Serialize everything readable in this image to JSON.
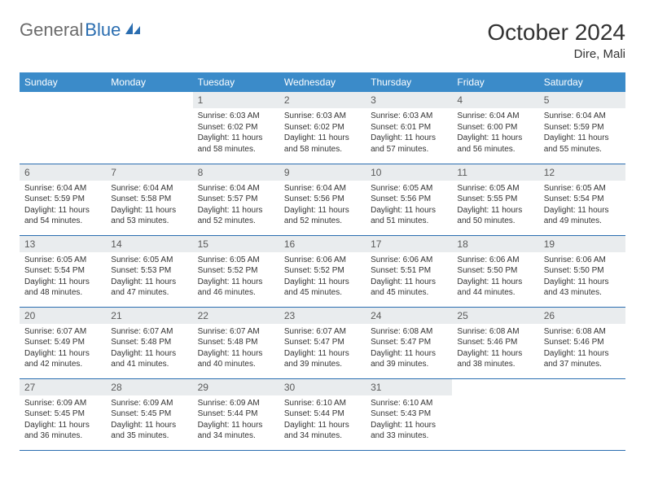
{
  "logo": {
    "part1": "General",
    "part2": "Blue"
  },
  "title": "October 2024",
  "location": "Dire, Mali",
  "colors": {
    "header_bg": "#3b8bc9",
    "header_text": "#ffffff",
    "daynum_bg": "#e9ecee",
    "border": "#2a6db0",
    "logo_gray": "#6b6b6b",
    "logo_blue": "#2a6db0"
  },
  "weekdays": [
    "Sunday",
    "Monday",
    "Tuesday",
    "Wednesday",
    "Thursday",
    "Friday",
    "Saturday"
  ],
  "weeks": [
    [
      null,
      null,
      {
        "n": "1",
        "sr": "Sunrise: 6:03 AM",
        "ss": "Sunset: 6:02 PM",
        "dl": "Daylight: 11 hours and 58 minutes."
      },
      {
        "n": "2",
        "sr": "Sunrise: 6:03 AM",
        "ss": "Sunset: 6:02 PM",
        "dl": "Daylight: 11 hours and 58 minutes."
      },
      {
        "n": "3",
        "sr": "Sunrise: 6:03 AM",
        "ss": "Sunset: 6:01 PM",
        "dl": "Daylight: 11 hours and 57 minutes."
      },
      {
        "n": "4",
        "sr": "Sunrise: 6:04 AM",
        "ss": "Sunset: 6:00 PM",
        "dl": "Daylight: 11 hours and 56 minutes."
      },
      {
        "n": "5",
        "sr": "Sunrise: 6:04 AM",
        "ss": "Sunset: 5:59 PM",
        "dl": "Daylight: 11 hours and 55 minutes."
      }
    ],
    [
      {
        "n": "6",
        "sr": "Sunrise: 6:04 AM",
        "ss": "Sunset: 5:59 PM",
        "dl": "Daylight: 11 hours and 54 minutes."
      },
      {
        "n": "7",
        "sr": "Sunrise: 6:04 AM",
        "ss": "Sunset: 5:58 PM",
        "dl": "Daylight: 11 hours and 53 minutes."
      },
      {
        "n": "8",
        "sr": "Sunrise: 6:04 AM",
        "ss": "Sunset: 5:57 PM",
        "dl": "Daylight: 11 hours and 52 minutes."
      },
      {
        "n": "9",
        "sr": "Sunrise: 6:04 AM",
        "ss": "Sunset: 5:56 PM",
        "dl": "Daylight: 11 hours and 52 minutes."
      },
      {
        "n": "10",
        "sr": "Sunrise: 6:05 AM",
        "ss": "Sunset: 5:56 PM",
        "dl": "Daylight: 11 hours and 51 minutes."
      },
      {
        "n": "11",
        "sr": "Sunrise: 6:05 AM",
        "ss": "Sunset: 5:55 PM",
        "dl": "Daylight: 11 hours and 50 minutes."
      },
      {
        "n": "12",
        "sr": "Sunrise: 6:05 AM",
        "ss": "Sunset: 5:54 PM",
        "dl": "Daylight: 11 hours and 49 minutes."
      }
    ],
    [
      {
        "n": "13",
        "sr": "Sunrise: 6:05 AM",
        "ss": "Sunset: 5:54 PM",
        "dl": "Daylight: 11 hours and 48 minutes."
      },
      {
        "n": "14",
        "sr": "Sunrise: 6:05 AM",
        "ss": "Sunset: 5:53 PM",
        "dl": "Daylight: 11 hours and 47 minutes."
      },
      {
        "n": "15",
        "sr": "Sunrise: 6:05 AM",
        "ss": "Sunset: 5:52 PM",
        "dl": "Daylight: 11 hours and 46 minutes."
      },
      {
        "n": "16",
        "sr": "Sunrise: 6:06 AM",
        "ss": "Sunset: 5:52 PM",
        "dl": "Daylight: 11 hours and 45 minutes."
      },
      {
        "n": "17",
        "sr": "Sunrise: 6:06 AM",
        "ss": "Sunset: 5:51 PM",
        "dl": "Daylight: 11 hours and 45 minutes."
      },
      {
        "n": "18",
        "sr": "Sunrise: 6:06 AM",
        "ss": "Sunset: 5:50 PM",
        "dl": "Daylight: 11 hours and 44 minutes."
      },
      {
        "n": "19",
        "sr": "Sunrise: 6:06 AM",
        "ss": "Sunset: 5:50 PM",
        "dl": "Daylight: 11 hours and 43 minutes."
      }
    ],
    [
      {
        "n": "20",
        "sr": "Sunrise: 6:07 AM",
        "ss": "Sunset: 5:49 PM",
        "dl": "Daylight: 11 hours and 42 minutes."
      },
      {
        "n": "21",
        "sr": "Sunrise: 6:07 AM",
        "ss": "Sunset: 5:48 PM",
        "dl": "Daylight: 11 hours and 41 minutes."
      },
      {
        "n": "22",
        "sr": "Sunrise: 6:07 AM",
        "ss": "Sunset: 5:48 PM",
        "dl": "Daylight: 11 hours and 40 minutes."
      },
      {
        "n": "23",
        "sr": "Sunrise: 6:07 AM",
        "ss": "Sunset: 5:47 PM",
        "dl": "Daylight: 11 hours and 39 minutes."
      },
      {
        "n": "24",
        "sr": "Sunrise: 6:08 AM",
        "ss": "Sunset: 5:47 PM",
        "dl": "Daylight: 11 hours and 39 minutes."
      },
      {
        "n": "25",
        "sr": "Sunrise: 6:08 AM",
        "ss": "Sunset: 5:46 PM",
        "dl": "Daylight: 11 hours and 38 minutes."
      },
      {
        "n": "26",
        "sr": "Sunrise: 6:08 AM",
        "ss": "Sunset: 5:46 PM",
        "dl": "Daylight: 11 hours and 37 minutes."
      }
    ],
    [
      {
        "n": "27",
        "sr": "Sunrise: 6:09 AM",
        "ss": "Sunset: 5:45 PM",
        "dl": "Daylight: 11 hours and 36 minutes."
      },
      {
        "n": "28",
        "sr": "Sunrise: 6:09 AM",
        "ss": "Sunset: 5:45 PM",
        "dl": "Daylight: 11 hours and 35 minutes."
      },
      {
        "n": "29",
        "sr": "Sunrise: 6:09 AM",
        "ss": "Sunset: 5:44 PM",
        "dl": "Daylight: 11 hours and 34 minutes."
      },
      {
        "n": "30",
        "sr": "Sunrise: 6:10 AM",
        "ss": "Sunset: 5:44 PM",
        "dl": "Daylight: 11 hours and 34 minutes."
      },
      {
        "n": "31",
        "sr": "Sunrise: 6:10 AM",
        "ss": "Sunset: 5:43 PM",
        "dl": "Daylight: 11 hours and 33 minutes."
      },
      null,
      null
    ]
  ]
}
